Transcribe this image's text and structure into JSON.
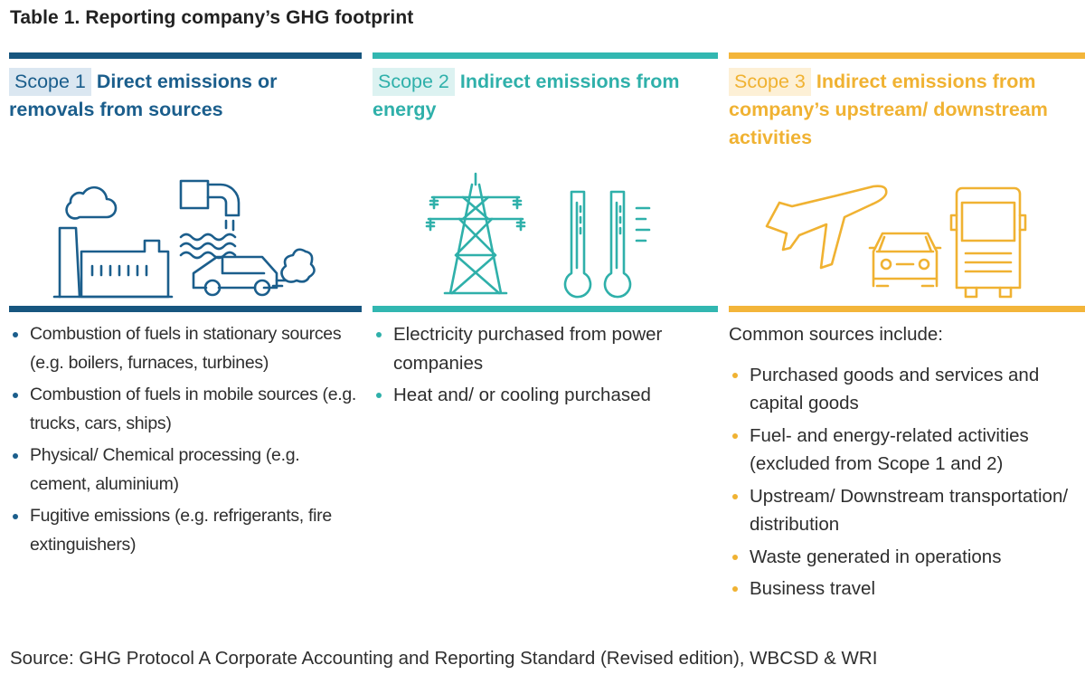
{
  "title": "Table 1. Reporting company’s GHG footprint",
  "colors": {
    "scope1": "#17567f",
    "scope2": "#32b7b1",
    "scope3": "#f3b53a"
  },
  "scope1": {
    "badge": "Scope 1",
    "heading_line1": "Direct emissions or",
    "heading_line2": "removals from sources",
    "icons": [
      "cloud-icon",
      "factory-icon",
      "pipe-icon",
      "water-waves-icon",
      "car-icon",
      "exhaust-icon"
    ],
    "items": [
      "Combustion of fuels in stationary sources (e.g. boilers, furnaces, turbines)",
      "Combustion of fuels in mobile sources (e.g. trucks, cars, ships)",
      "Physical/ Chemical processing (e.g. cement, aluminium)",
      "Fugitive emissions (e.g. refrigerants, fire extinguishers)"
    ]
  },
  "scope2": {
    "badge": "Scope 2",
    "heading_line1": "Indirect emissions from",
    "heading_line2": "energy",
    "icons": [
      "power-tower-icon",
      "thermometer-icon"
    ],
    "items": [
      "Electricity purchased from power companies",
      "Heat and/ or cooling purchased"
    ]
  },
  "scope3": {
    "badge": "Scope 3",
    "heading_line1": "Indirect emissions from",
    "heading_line2": "company’s upstream/ downstream",
    "heading_line3": "activities",
    "icons": [
      "airplane-icon",
      "car-icon",
      "truck-icon"
    ],
    "intro": "Common sources include:",
    "items": [
      "Purchased goods and services and capital goods",
      "Fuel- and energy-related activities (excluded from Scope 1 and 2)",
      "Upstream/ Downstream transportation/ distribution",
      "Waste generated in operations",
      "Business travel"
    ]
  },
  "source": "Source: GHG Protocol A Corporate Accounting and Reporting Standard (Revised edition), WBCSD & WRI"
}
